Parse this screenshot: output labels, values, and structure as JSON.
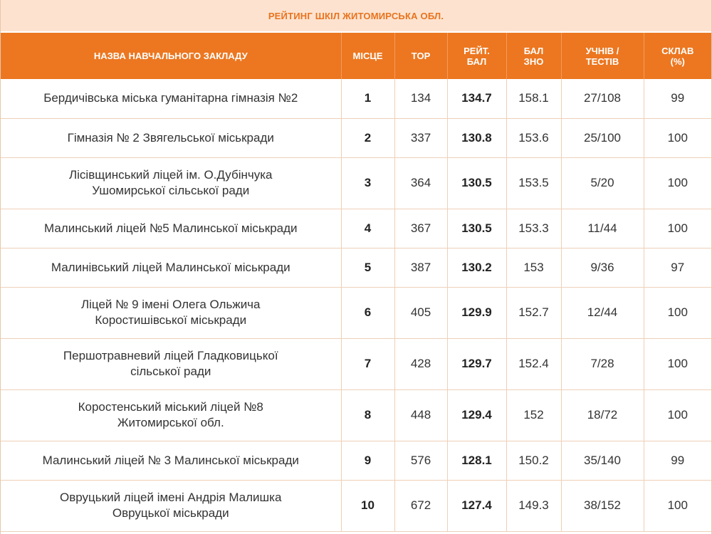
{
  "title": "РЕЙТИНГ ШКІЛ ЖИТОМИРСЬКА ОБЛ.",
  "headers": {
    "name": "НАЗВА НАВЧАЛЬНОГО ЗАКЛАДУ",
    "place": "МІСЦЕ",
    "top": "TOP",
    "rating_1": "РЕЙТ.",
    "rating_2": "БАЛ",
    "zno_1": "БАЛ",
    "zno_2": "ЗНО",
    "students_1": "УЧНІВ /",
    "students_2": "ТЕСТІВ",
    "completion_1": "СКЛАВ",
    "completion_2": "(%)"
  },
  "rows": [
    {
      "name_line1": "Бердичівська міська гуманітарна гімназія №2",
      "name_line2": "",
      "place": "1",
      "top": "134",
      "rating": "134.7",
      "zno": "158.1",
      "students": "27/108",
      "completion": "99"
    },
    {
      "name_line1": "Гімназія № 2 Звягельської міськради",
      "name_line2": "",
      "place": "2",
      "top": "337",
      "rating": "130.8",
      "zno": "153.6",
      "students": "25/100",
      "completion": "100"
    },
    {
      "name_line1": "Лісівщинський ліцей ім. О.Дубінчука",
      "name_line2": "Ушомирської сільської ради",
      "place": "3",
      "top": "364",
      "rating": "130.5",
      "zno": "153.5",
      "students": "5/20",
      "completion": "100"
    },
    {
      "name_line1": "Малинський ліцей №5 Малинської міськради",
      "name_line2": "",
      "place": "4",
      "top": "367",
      "rating": "130.5",
      "zno": "153.3",
      "students": "11/44",
      "completion": "100"
    },
    {
      "name_line1": "Малинівський ліцей Малинської міськради",
      "name_line2": "",
      "place": "5",
      "top": "387",
      "rating": "130.2",
      "zno": "153",
      "students": "9/36",
      "completion": "97"
    },
    {
      "name_line1": "Ліцей № 9 імені Олега Ольжича",
      "name_line2": "Коростишівської міськради",
      "place": "6",
      "top": "405",
      "rating": "129.9",
      "zno": "152.7",
      "students": "12/44",
      "completion": "100"
    },
    {
      "name_line1": "Першотравневий ліцей Гладковицької",
      "name_line2": "сільської ради",
      "place": "7",
      "top": "428",
      "rating": "129.7",
      "zno": "152.4",
      "students": "7/28",
      "completion": "100"
    },
    {
      "name_line1": "Коростенський міський ліцей №8",
      "name_line2": "Житомирської обл.",
      "place": "8",
      "top": "448",
      "rating": "129.4",
      "zno": "152",
      "students": "18/72",
      "completion": "100"
    },
    {
      "name_line1": "Малинський ліцей № 3 Малинської міськради",
      "name_line2": "",
      "place": "9",
      "top": "576",
      "rating": "128.1",
      "zno": "150.2",
      "students": "35/140",
      "completion": "99"
    },
    {
      "name_line1": "Овруцький ліцей імені Андрія Малишка",
      "name_line2": "Овруцької міськради",
      "place": "10",
      "top": "672",
      "rating": "127.4",
      "zno": "149.3",
      "students": "38/152",
      "completion": "100"
    }
  ]
}
